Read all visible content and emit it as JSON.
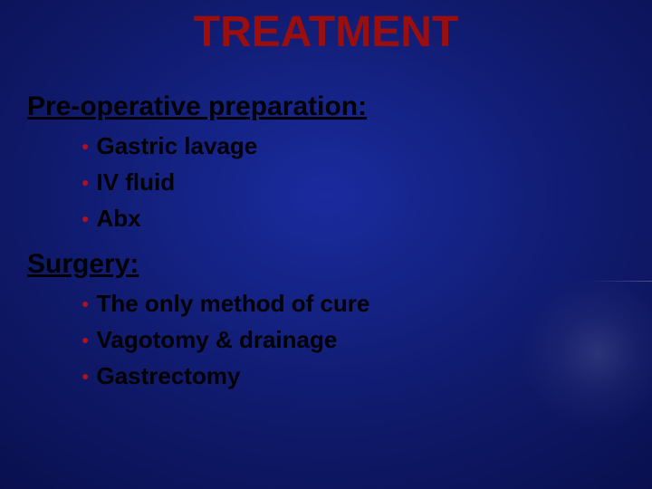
{
  "slide": {
    "title": "TREATMENT",
    "title_color": "#9a0e0e",
    "title_fontsize": 48,
    "heading_color": "#000000",
    "heading_fontsize": 30,
    "bullet_text_color": "#000000",
    "bullet_fontsize": 26,
    "bullet_icon_color": "#b01020",
    "bullet_icon_fontsize": 14,
    "line_height": 40,
    "background_gradient_center": "#1a2b9e",
    "background_gradient_edge": "#05082d",
    "sections": [
      {
        "heading": "Pre-operative preparation:",
        "items": [
          "Gastric lavage",
          "IV fluid",
          "Abx"
        ]
      },
      {
        "heading": "Surgery:",
        "items": [
          "The only method of cure",
          "Vagotomy & drainage",
          "Gastrectomy"
        ]
      }
    ]
  }
}
